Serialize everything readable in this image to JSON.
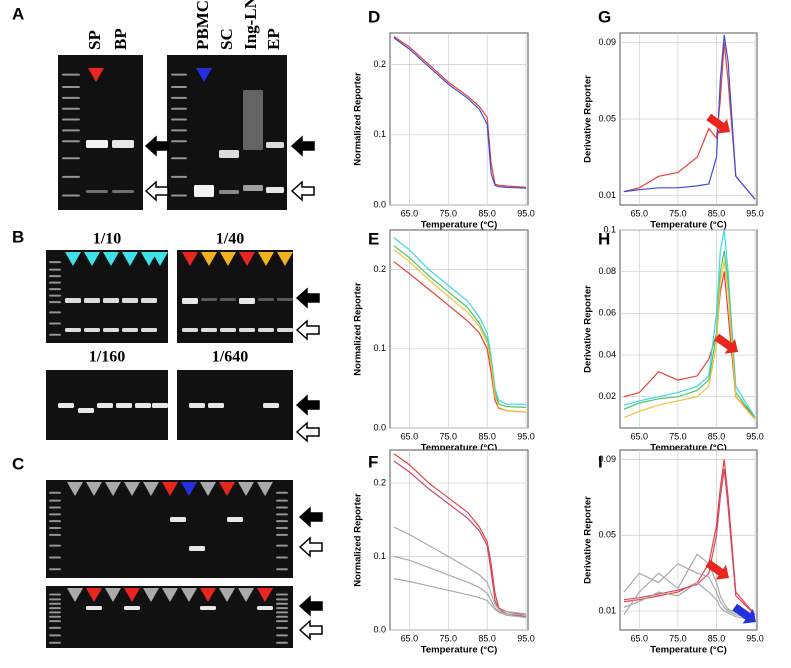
{
  "panel_labels": [
    "A",
    "B",
    "C",
    "D",
    "E",
    "F",
    "G",
    "H",
    "I"
  ],
  "gel_a": {
    "lanes_left": [
      "SP",
      "BP"
    ],
    "lanes_right": [
      "PBMC",
      "SC",
      "Ing-LN",
      "EP"
    ]
  },
  "gel_b": {
    "dilutions": [
      "1/10",
      "1/40",
      "1/160",
      "1/640"
    ]
  },
  "chart_data": [
    {
      "type": "line",
      "xlabel": "Temperature (°C)",
      "ylabel": "Normalized Reporter",
      "x": [
        61,
        65,
        70,
        75,
        80,
        83,
        85,
        86,
        87,
        88,
        90,
        95
      ],
      "xlim": [
        60,
        95.5
      ],
      "xticks": [
        {
          "value": 65,
          "label": "65.0"
        },
        {
          "value": 75,
          "label": "75.0"
        },
        {
          "value": 85,
          "label": "85.0"
        },
        {
          "value": 95,
          "label": "95.0"
        }
      ],
      "ylim": [
        0,
        0.245
      ],
      "yticks": [
        {
          "value": 0,
          "label": "0.0"
        },
        0.1,
        0.2
      ],
      "grid": true,
      "series": [
        {
          "color": "#e8413c",
          "values": [
            0.24,
            0.225,
            0.2,
            0.175,
            0.155,
            0.14,
            0.125,
            0.06,
            0.03,
            0.028,
            0.027,
            0.025
          ]
        },
        {
          "color": "#3b4fd8",
          "values": [
            0.238,
            0.222,
            0.197,
            0.172,
            0.152,
            0.136,
            0.115,
            0.045,
            0.028,
            0.026,
            0.025,
            0.024
          ]
        }
      ]
    },
    {
      "type": "line",
      "xlabel": "Temperature (°C)",
      "ylabel": "Normalized Reporter",
      "x": [
        61,
        65,
        70,
        75,
        80,
        83,
        85,
        86,
        87,
        88,
        90,
        95
      ],
      "xlim": [
        60,
        95.5
      ],
      "xticks": [
        {
          "value": 65,
          "label": "65.0"
        },
        {
          "value": 75,
          "label": "75.0"
        },
        {
          "value": 85,
          "label": "85.0"
        },
        {
          "value": 95,
          "label": "95.0"
        }
      ],
      "ylim": [
        0,
        0.25
      ],
      "yticks": [
        {
          "value": 0,
          "label": "0.0"
        },
        0.1,
        0.2
      ],
      "grid": true,
      "series": [
        {
          "color": "#e8413c",
          "values": [
            0.21,
            0.195,
            0.175,
            0.155,
            0.135,
            0.12,
            0.1,
            0.07,
            0.035,
            0.025,
            0.022,
            0.02
          ]
        },
        {
          "color": "#3fd6e0",
          "values": [
            0.24,
            0.225,
            0.2,
            0.18,
            0.16,
            0.14,
            0.12,
            0.09,
            0.05,
            0.035,
            0.03,
            0.03
          ]
        },
        {
          "color": "#49c96a",
          "values": [
            0.23,
            0.215,
            0.192,
            0.172,
            0.152,
            0.132,
            0.112,
            0.085,
            0.045,
            0.03,
            0.027,
            0.026
          ]
        },
        {
          "color": "#f0c23a",
          "values": [
            0.225,
            0.21,
            0.187,
            0.166,
            0.146,
            0.128,
            0.108,
            0.08,
            0.04,
            0.026,
            0.022,
            0.02
          ]
        }
      ]
    },
    {
      "type": "line",
      "xlabel": "Temperature (°C)",
      "ylabel": "Normalized Reporter",
      "x": [
        61,
        65,
        70,
        75,
        80,
        83,
        85,
        86,
        87,
        88,
        90,
        95
      ],
      "xlim": [
        60,
        95.5
      ],
      "xticks": [
        {
          "value": 65,
          "label": "65.0"
        },
        {
          "value": 75,
          "label": "75.0"
        },
        {
          "value": 85,
          "label": "85.0"
        },
        {
          "value": 95,
          "label": "95.0"
        }
      ],
      "ylim": [
        0,
        0.245
      ],
      "yticks": [
        {
          "value": 0,
          "label": "0.0"
        },
        0.1,
        0.2
      ],
      "grid": true,
      "series": [
        {
          "color": "#e8413c",
          "values": [
            0.24,
            0.225,
            0.2,
            0.18,
            0.16,
            0.14,
            0.12,
            0.09,
            0.05,
            0.03,
            0.025,
            0.02
          ]
        },
        {
          "color": "#c94a6a",
          "values": [
            0.23,
            0.215,
            0.192,
            0.172,
            0.152,
            0.135,
            0.115,
            0.08,
            0.04,
            0.028,
            0.022,
            0.018
          ]
        },
        {
          "color": "#aaaaaa",
          "values": [
            0.14,
            0.13,
            0.115,
            0.1,
            0.085,
            0.075,
            0.065,
            0.05,
            0.035,
            0.028,
            0.025,
            0.022
          ]
        },
        {
          "color": "#aaaaaa",
          "values": [
            0.1,
            0.095,
            0.085,
            0.075,
            0.065,
            0.058,
            0.05,
            0.04,
            0.03,
            0.025,
            0.022,
            0.02
          ]
        },
        {
          "color": "#aaaaaa",
          "values": [
            0.07,
            0.066,
            0.06,
            0.054,
            0.048,
            0.044,
            0.04,
            0.034,
            0.028,
            0.024,
            0.02,
            0.017
          ]
        }
      ]
    },
    {
      "type": "line",
      "xlabel": "Temperature (°C)",
      "ylabel": "Derivative Reporter",
      "x": [
        61,
        65,
        70,
        75,
        80,
        83,
        85,
        86,
        87,
        88,
        90,
        95
      ],
      "xlim": [
        60,
        95.5
      ],
      "xticks": [
        {
          "value": 65,
          "label": "65.0"
        },
        {
          "value": 75,
          "label": "75.0"
        },
        {
          "value": 85,
          "label": "85.0"
        },
        {
          "value": 95,
          "label": "95.0"
        }
      ],
      "ylim": [
        0.005,
        0.095
      ],
      "yticks": [
        0.01,
        0.05,
        0.09
      ],
      "grid": true,
      "series": [
        {
          "color": "#e8413c",
          "values": [
            0.012,
            0.014,
            0.02,
            0.022,
            0.03,
            0.045,
            0.04,
            0.06,
            0.09,
            0.07,
            0.02,
            0.008
          ]
        },
        {
          "color": "#3b4fd8",
          "values": [
            0.012,
            0.013,
            0.014,
            0.014,
            0.015,
            0.016,
            0.03,
            0.07,
            0.094,
            0.08,
            0.02,
            0.008
          ]
        }
      ]
    },
    {
      "type": "line",
      "xlabel": "Temperature (°C)",
      "ylabel": "Derivative Reporter",
      "x": [
        61,
        65,
        70,
        75,
        80,
        83,
        85,
        86,
        87,
        88,
        90,
        95
      ],
      "xlim": [
        60,
        95.5
      ],
      "xticks": [
        {
          "value": 65,
          "label": "65.0"
        },
        {
          "value": 75,
          "label": "75.0"
        },
        {
          "value": 85,
          "label": "85.0"
        },
        {
          "value": 95,
          "label": "95.0"
        }
      ],
      "ylim": [
        0.005,
        0.1
      ],
      "yticks": [
        0.02,
        0.04,
        0.06,
        0.08,
        0.1
      ],
      "grid": true,
      "series": [
        {
          "color": "#e8413c",
          "values": [
            0.02,
            0.022,
            0.032,
            0.028,
            0.03,
            0.038,
            0.05,
            0.07,
            0.08,
            0.06,
            0.02,
            0.01
          ]
        },
        {
          "color": "#3fd6e0",
          "values": [
            0.016,
            0.018,
            0.02,
            0.022,
            0.025,
            0.03,
            0.06,
            0.09,
            0.1,
            0.08,
            0.025,
            0.01
          ]
        },
        {
          "color": "#49c96a",
          "values": [
            0.014,
            0.017,
            0.019,
            0.02,
            0.023,
            0.028,
            0.05,
            0.08,
            0.09,
            0.075,
            0.022,
            0.01
          ]
        },
        {
          "color": "#f0c23a",
          "values": [
            0.01,
            0.013,
            0.016,
            0.018,
            0.02,
            0.025,
            0.045,
            0.075,
            0.085,
            0.07,
            0.02,
            0.009
          ]
        }
      ]
    },
    {
      "type": "line",
      "xlabel": "Temperature (°C)",
      "ylabel": "Derivative Reporter",
      "x": [
        61,
        65,
        70,
        75,
        80,
        83,
        85,
        86,
        87,
        88,
        90,
        95
      ],
      "xlim": [
        60,
        95.5
      ],
      "xticks": [
        {
          "value": 65,
          "label": "65.0"
        },
        {
          "value": 75,
          "label": "75.0"
        },
        {
          "value": 85,
          "label": "85.0"
        },
        {
          "value": 95,
          "label": "95.0"
        }
      ],
      "ylim": [
        0,
        0.095
      ],
      "yticks": [
        0.01,
        0.05,
        0.09
      ],
      "grid": true,
      "series": [
        {
          "color": "#e8413c",
          "values": [
            0.015,
            0.016,
            0.018,
            0.02,
            0.025,
            0.035,
            0.055,
            0.075,
            0.09,
            0.07,
            0.02,
            0.008
          ]
        },
        {
          "color": "#c94a6a",
          "values": [
            0.016,
            0.017,
            0.019,
            0.021,
            0.024,
            0.03,
            0.05,
            0.07,
            0.085,
            0.065,
            0.018,
            0.008
          ]
        },
        {
          "color": "#aaaaaa",
          "values": [
            0.02,
            0.03,
            0.025,
            0.035,
            0.03,
            0.028,
            0.02,
            0.015,
            0.012,
            0.01,
            0.008,
            0.006
          ]
        },
        {
          "color": "#aaaaaa",
          "values": [
            0.008,
            0.02,
            0.03,
            0.022,
            0.04,
            0.035,
            0.025,
            0.018,
            0.014,
            0.011,
            0.009,
            0.007
          ]
        },
        {
          "color": "#aaaaaa",
          "values": [
            0.012,
            0.015,
            0.02,
            0.018,
            0.025,
            0.02,
            0.016,
            0.012,
            0.01,
            0.009,
            0.007,
            0.005
          ]
        }
      ]
    }
  ]
}
